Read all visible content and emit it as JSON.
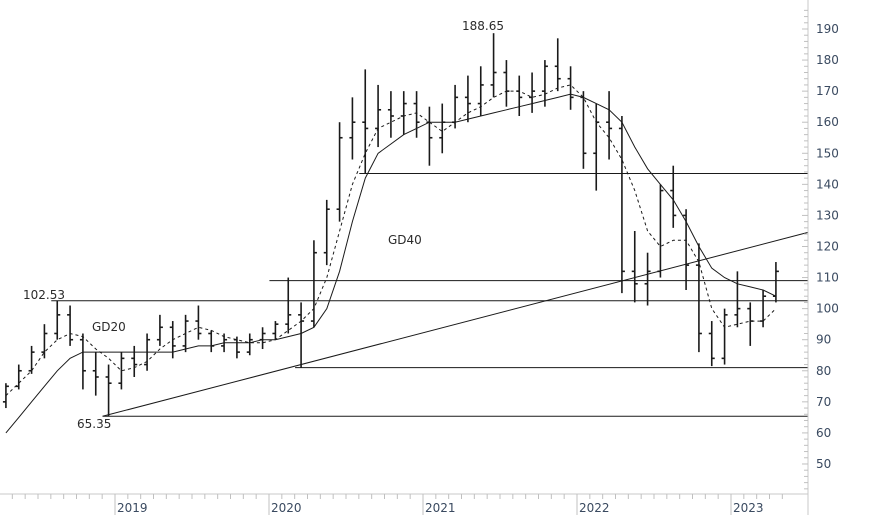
{
  "chart_data": {
    "type": "ohlc",
    "y_axis": {
      "ticks": [
        50,
        60,
        70,
        80,
        90,
        100,
        110,
        120,
        130,
        140,
        150,
        160,
        170,
        180,
        190
      ],
      "range": [
        40,
        196
      ],
      "position": "right"
    },
    "x_axis": {
      "ticks": [
        "2019",
        "2020",
        "2021",
        "2022",
        "2023"
      ]
    },
    "grid": false,
    "annotations": {
      "high": "188.65",
      "mid_high": "102.53",
      "low": "65.35",
      "ma_short": "GD20",
      "ma_long": "GD40"
    },
    "bars": [
      [
        "2018-04",
        70,
        76,
        68,
        75
      ],
      [
        "2018-05",
        75,
        82,
        74,
        80
      ],
      [
        "2018-06",
        80,
        88,
        79,
        86
      ],
      [
        "2018-07",
        86,
        95,
        84,
        92
      ],
      [
        "2018-08",
        92,
        102.53,
        90,
        98
      ],
      [
        "2018-09",
        98,
        101,
        88,
        90
      ],
      [
        "2018-10",
        90,
        92,
        74,
        80
      ],
      [
        "2018-11",
        80,
        86,
        72,
        78
      ],
      [
        "2018-12",
        78,
        82,
        65.35,
        76
      ],
      [
        "2019-01",
        76,
        86,
        74,
        84
      ],
      [
        "2019-02",
        84,
        88,
        78,
        82
      ],
      [
        "2019-03",
        82,
        92,
        80,
        90
      ],
      [
        "2019-04",
        90,
        98,
        88,
        94
      ],
      [
        "2019-05",
        94,
        96,
        84,
        88
      ],
      [
        "2019-06",
        88,
        98,
        86,
        96
      ],
      [
        "2019-07",
        96,
        101,
        90,
        92
      ],
      [
        "2019-08",
        92,
        93,
        86,
        88
      ],
      [
        "2019-09",
        88,
        92,
        86,
        90
      ],
      [
        "2019-10",
        90,
        91,
        84,
        86
      ],
      [
        "2019-11",
        86,
        92,
        85,
        90
      ],
      [
        "2019-12",
        90,
        94,
        87,
        92
      ],
      [
        "2020-01",
        92,
        96,
        90,
        95
      ],
      [
        "2020-02",
        95,
        110,
        92,
        98
      ],
      [
        "2020-03",
        98,
        102,
        81,
        96
      ],
      [
        "2020-04",
        96,
        122,
        94,
        118
      ],
      [
        "2020-05",
        118,
        135,
        114,
        132
      ],
      [
        "2020-06",
        132,
        160,
        128,
        155
      ],
      [
        "2020-07",
        155,
        168,
        148,
        160
      ],
      [
        "2020-08",
        160,
        177,
        143.5,
        158
      ],
      [
        "2020-09",
        158,
        172,
        152,
        164
      ],
      [
        "2020-10",
        164,
        170,
        155,
        162
      ],
      [
        "2020-11",
        162,
        170,
        156,
        166
      ],
      [
        "2020-12",
        166,
        170,
        155,
        160
      ],
      [
        "2021-01",
        160,
        165,
        146,
        155
      ],
      [
        "2021-02",
        155,
        166,
        150,
        160
      ],
      [
        "2021-03",
        160,
        172,
        158,
        168
      ],
      [
        "2021-04",
        168,
        175,
        160,
        166
      ],
      [
        "2021-05",
        166,
        178,
        162,
        172
      ],
      [
        "2021-06",
        172,
        188.65,
        168,
        176
      ],
      [
        "2021-07",
        176,
        180,
        165,
        170
      ],
      [
        "2021-08",
        170,
        175,
        162,
        168
      ],
      [
        "2021-09",
        168,
        176,
        163,
        170
      ],
      [
        "2021-10",
        170,
        180,
        165,
        178
      ],
      [
        "2021-11",
        178,
        187,
        170,
        174
      ],
      [
        "2021-12",
        174,
        178,
        164,
        168
      ],
      [
        "2022-01",
        168,
        170,
        145,
        150
      ],
      [
        "2022-02",
        150,
        166,
        138,
        160
      ],
      [
        "2022-03",
        160,
        170,
        148,
        158
      ],
      [
        "2022-04",
        158,
        162,
        105,
        112
      ],
      [
        "2022-05",
        112,
        125,
        102,
        108
      ],
      [
        "2022-06",
        108,
        118,
        101,
        112
      ],
      [
        "2022-07",
        112,
        140,
        110,
        138
      ],
      [
        "2022-08",
        138,
        146,
        126,
        130
      ],
      [
        "2022-09",
        130,
        132,
        106,
        114
      ],
      [
        "2022-10",
        114,
        121,
        86,
        92
      ],
      [
        "2022-11",
        92,
        96,
        81.5,
        84
      ],
      [
        "2022-12",
        84,
        100,
        82,
        98
      ],
      [
        "2023-01",
        98,
        112,
        94,
        100
      ],
      [
        "2023-02",
        100,
        102,
        88,
        96
      ],
      [
        "2023-03",
        96,
        106,
        94,
        104
      ],
      [
        "2023-04",
        104,
        115,
        102,
        112
      ]
    ],
    "series": [
      {
        "name": "GD20",
        "style": "dashed",
        "values": [
          72,
          76,
          80,
          86,
          90,
          92,
          91,
          87,
          84,
          80,
          81,
          83,
          87,
          90,
          92,
          94,
          93,
          91,
          90,
          89,
          89,
          90,
          93,
          96,
          100,
          110,
          125,
          140,
          150,
          158,
          160,
          162,
          163,
          160,
          157,
          160,
          163,
          165,
          168,
          170,
          170,
          168,
          169,
          171,
          172,
          168,
          160,
          155,
          148,
          138,
          125,
          120,
          122,
          122,
          115,
          100,
          94,
          95,
          96,
          96,
          100
        ]
      },
      {
        "name": "GD40",
        "style": "solid",
        "values": [
          60,
          65,
          70,
          75,
          80,
          84,
          86,
          86,
          86,
          86,
          86,
          86,
          86,
          86,
          87,
          88,
          88,
          89,
          89,
          89,
          90,
          90,
          91,
          92,
          94,
          100,
          112,
          128,
          142,
          150,
          153,
          156,
          158,
          160,
          160,
          160,
          161,
          162,
          163,
          164,
          165,
          166,
          167,
          168,
          169,
          168,
          166,
          164,
          160,
          152,
          145,
          140,
          135,
          128,
          120,
          113,
          110,
          108,
          107,
          106,
          104
        ]
      }
    ],
    "horizontal_levels": [
      {
        "value": 143.5,
        "from": "2020-08"
      },
      {
        "value": 109,
        "from": "2020-01"
      },
      {
        "value": 102.53,
        "from": "2018-08"
      },
      {
        "value": 81,
        "from": "2020-03"
      },
      {
        "value": 65.35,
        "from": "2018-12"
      }
    ],
    "trendline": {
      "from": [
        "2018-12",
        65.35
      ],
      "to": [
        "2023-06",
        124
      ]
    }
  }
}
